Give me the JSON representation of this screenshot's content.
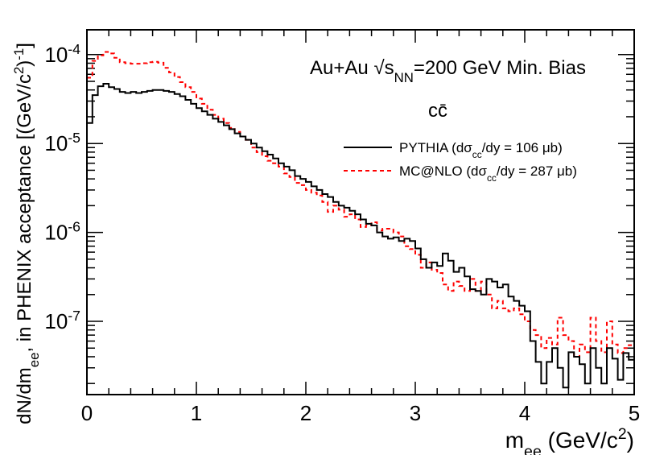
{
  "chart_data": {
    "type": "line",
    "x_axis": {
      "label": "m_ee (GeV/c²)",
      "range": [
        0,
        5
      ],
      "tick_labels": [
        "0",
        "1",
        "2",
        "3",
        "4",
        "5"
      ]
    },
    "y_axis": {
      "label": "dN/dm_ee, in PHENIX acceptance [(GeV/c²)⁻¹]",
      "scale": "log",
      "range": [
        1.5e-08,
        0.00019
      ],
      "tick_labels": [
        {
          "base": "10",
          "exp": "-4",
          "value": 0.0001
        },
        {
          "base": "10",
          "exp": "-5",
          "value": 1e-05
        },
        {
          "base": "10",
          "exp": "-6",
          "value": 1e-06
        },
        {
          "base": "10",
          "exp": "-7",
          "value": 1e-07
        }
      ]
    },
    "title_annotation": "Au+Au √s_NN=200 GeV Min. Bias",
    "process_label": "cc̄",
    "legend": {
      "position": "top-right",
      "entries": [
        {
          "series": "PYTHIA",
          "label": "PYTHIA (dσcc/dy = 106 μb)"
        },
        {
          "series": "MC@NLO",
          "label": "MC@NLO (dσcc/dy = 287 μb)"
        }
      ]
    },
    "bin_width": 0.05,
    "series": [
      {
        "name": "PYTHIA",
        "color": "#000000",
        "line_style": "solid",
        "values": [
          1.7e-05,
          3.5e-05,
          4.4e-05,
          4.7e-05,
          4.3e-05,
          4.1e-05,
          3.8e-05,
          3.7e-05,
          3.8e-05,
          3.7e-05,
          3.8e-05,
          3.9e-05,
          4e-05,
          4e-05,
          3.9e-05,
          3.8e-05,
          3.6e-05,
          3.4e-05,
          3.1e-05,
          2.8e-05,
          2.5e-05,
          2.3e-05,
          2.1e-05,
          1.9e-05,
          1.75e-05,
          1.6e-05,
          1.45e-05,
          1.3e-05,
          1.2e-05,
          1.1e-05,
          1e-05,
          9e-06,
          8.2e-06,
          7.5e-06,
          6.8e-06,
          6e-06,
          5.5e-06,
          5e-06,
          4.3e-06,
          4e-06,
          3.7e-06,
          3.3e-06,
          3e-06,
          2.7e-06,
          2.5e-06,
          2.2e-06,
          2e-06,
          1.9e-06,
          1.75e-06,
          1.6e-06,
          1.4e-06,
          1.25e-06,
          1.2e-06,
          1e-06,
          9e-07,
          8.5e-07,
          8.8e-07,
          8e-07,
          8.5e-07,
          8e-07,
          6.6e-07,
          5e-07,
          4e-07,
          4.6e-07,
          4.2e-07,
          5.8e-07,
          4.8e-07,
          3.6e-07,
          4e-07,
          3.2e-07,
          2.3e-07,
          2.2e-07,
          2e-07,
          3e-07,
          2.8e-07,
          2.4e-07,
          2.6e-07,
          1.9e-07,
          1.7e-07,
          1.5e-07,
          1.3e-07,
          6e-08,
          3.5e-08,
          2e-08,
          3.5e-08,
          5e-08,
          3e-08,
          1.8e-08,
          4.5e-08,
          4e-08,
          3.3e-08,
          2e-08,
          5e-08,
          3e-08,
          2e-08,
          5e-08,
          3.8e-08,
          2.2e-08,
          4.4e-08,
          3.7e-08
        ]
      },
      {
        "name": "MC@NLO",
        "color": "#ff0000",
        "line_style": "dashed",
        "values": [
          5.5e-05,
          8.5e-05,
          9.8e-05,
          0.000107,
          0.000103,
          9.2e-05,
          8.2e-05,
          8e-05,
          7.9e-05,
          7.9e-05,
          8e-05,
          8.2e-05,
          8.3e-05,
          8.1e-05,
          7.1e-05,
          6.3e-05,
          5.6e-05,
          4.9e-05,
          4.3e-05,
          3.8e-05,
          3.2e-05,
          2.8e-05,
          2.4e-05,
          2.1e-05,
          1.9e-05,
          1.7e-05,
          1.5e-05,
          1.35e-05,
          1.2e-05,
          1.1e-05,
          9e-06,
          8e-06,
          7.2e-06,
          6.4e-06,
          6e-06,
          5.5e-06,
          4.6e-06,
          4.2e-06,
          3.6e-06,
          3.4e-06,
          3e-06,
          2.8e-06,
          2.6e-06,
          2.2e-06,
          1.7e-06,
          2e-06,
          1.8e-06,
          1.5e-06,
          1.6e-06,
          1.4e-06,
          1.15e-06,
          1.2e-06,
          1.3e-06,
          1.05e-06,
          1.1e-06,
          1.1e-06,
          1e-06,
          9e-07,
          7e-07,
          6.5e-07,
          5.6e-07,
          4e-07,
          4.6e-07,
          3.8e-07,
          3.5e-07,
          2.6e-07,
          2.2e-07,
          2.8e-07,
          2.5e-07,
          2.2e-07,
          3e-07,
          2.2e-07,
          2.8e-07,
          2e-07,
          1.4e-07,
          1.7e-07,
          1.4e-07,
          1.3e-07,
          1.4e-07,
          1.2e-07,
          1e-07,
          8e-08,
          7e-08,
          5e-08,
          6.5e-08,
          5.5e-08,
          1.1e-07,
          7e-08,
          6e-08,
          4e-08,
          5.5e-08,
          4.5e-08,
          1.1e-07,
          6e-08,
          4.5e-08,
          1e-07,
          5.5e-08,
          4.4e-08,
          5e-08,
          5.4e-08
        ]
      }
    ]
  }
}
